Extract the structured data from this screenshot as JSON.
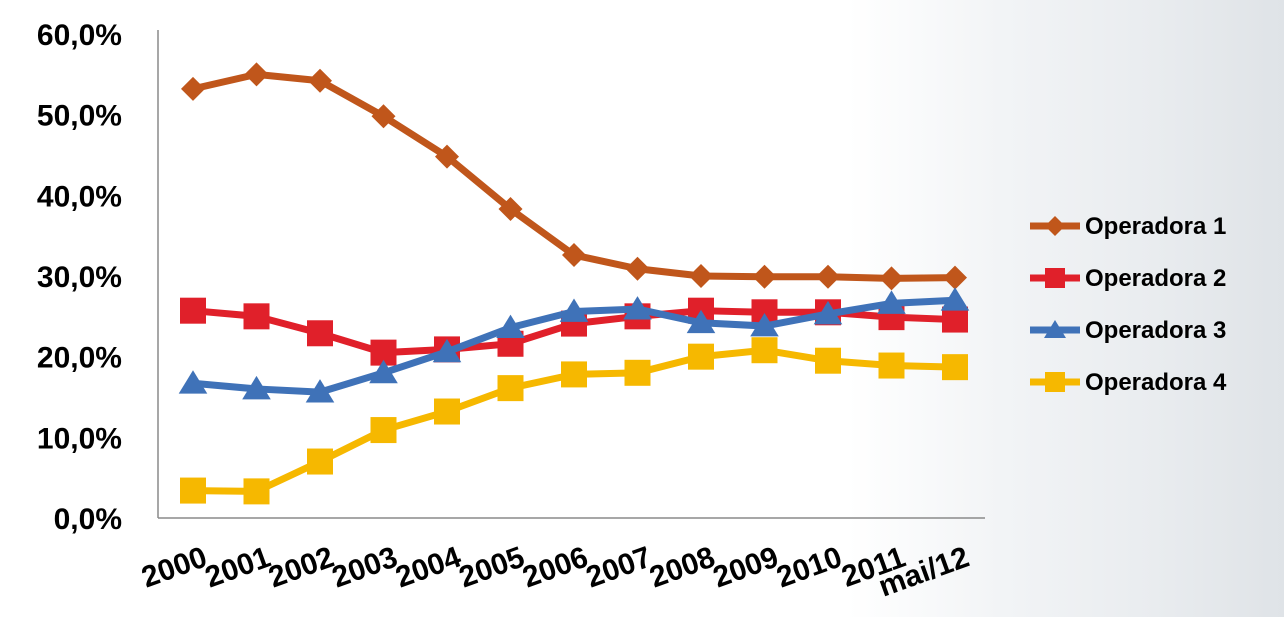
{
  "chart_data": {
    "type": "line",
    "title": "",
    "xlabel": "",
    "ylabel": "",
    "categories": [
      "2000",
      "2001",
      "2002",
      "2003",
      "2004",
      "2005",
      "2006",
      "2007",
      "2008",
      "2009",
      "2010",
      "2011",
      "mai/12"
    ],
    "y_tick_labels": [
      "0,0%",
      "10,0%",
      "20,0%",
      "30,0%",
      "40,0%",
      "50,0%",
      "60,0%"
    ],
    "y_ticks": [
      0,
      10,
      20,
      30,
      40,
      50,
      60
    ],
    "ylim": [
      0,
      60
    ],
    "grid": false,
    "legend_position": "right",
    "series": [
      {
        "name": "Operadora 1",
        "color": "#c0561b",
        "marker": "diamond",
        "values": [
          53.2,
          55.0,
          54.2,
          49.8,
          44.8,
          38.3,
          32.6,
          30.9,
          30.0,
          29.9,
          29.9,
          29.7,
          29.8
        ]
      },
      {
        "name": "Operadora 2",
        "color": "#e0202a",
        "marker": "square",
        "values": [
          25.7,
          25.0,
          22.9,
          20.5,
          20.9,
          21.6,
          24.1,
          25.0,
          25.7,
          25.5,
          25.5,
          24.9,
          24.6
        ]
      },
      {
        "name": "Operadora 3",
        "color": "#3f72b8",
        "marker": "triangle",
        "values": [
          16.7,
          16.0,
          15.6,
          18.0,
          20.6,
          23.6,
          25.6,
          25.9,
          24.2,
          23.8,
          25.3,
          26.6,
          27.0
        ]
      },
      {
        "name": "Operadora 4",
        "color": "#f6b800",
        "marker": "square",
        "values": [
          3.4,
          3.3,
          7.0,
          10.9,
          13.2,
          16.1,
          17.8,
          18.0,
          20.0,
          20.8,
          19.5,
          18.9,
          18.7
        ]
      }
    ]
  }
}
